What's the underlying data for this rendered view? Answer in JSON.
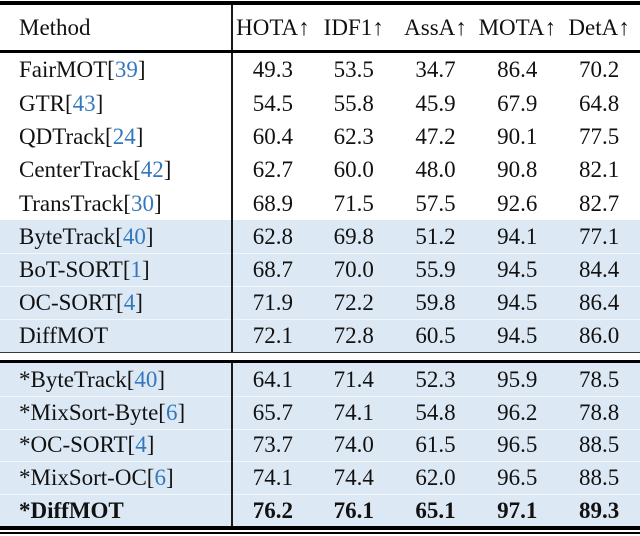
{
  "table_title": "tracking-results-table",
  "colors": {
    "citation_blue": "#3477bd",
    "row_highlight_blue": "#dce8f4",
    "text": "#111111"
  },
  "header": {
    "method": "Method",
    "cols": [
      "HOTA↑",
      "IDF1↑",
      "AssA↑",
      "MOTA↑",
      "DetA↑"
    ]
  },
  "rows": [
    {
      "section": 1,
      "highlight": false,
      "bold": false,
      "pre": "FairMOT[",
      "cite": "39",
      "post": "]",
      "values": [
        "49.3",
        "53.5",
        "34.7",
        "86.4",
        "70.2"
      ]
    },
    {
      "section": 1,
      "highlight": false,
      "bold": false,
      "pre": "GTR[",
      "cite": "43",
      "post": "]",
      "values": [
        "54.5",
        "55.8",
        "45.9",
        "67.9",
        "64.8"
      ]
    },
    {
      "section": 1,
      "highlight": false,
      "bold": false,
      "pre": "QDTrack[",
      "cite": "24",
      "post": "]",
      "values": [
        "60.4",
        "62.3",
        "47.2",
        "90.1",
        "77.5"
      ]
    },
    {
      "section": 1,
      "highlight": false,
      "bold": false,
      "pre": "CenterTrack[",
      "cite": "42",
      "post": "]",
      "values": [
        "62.7",
        "60.0",
        "48.0",
        "90.8",
        "82.1"
      ]
    },
    {
      "section": 1,
      "highlight": false,
      "bold": false,
      "pre": "TransTrack[",
      "cite": "30",
      "post": "]",
      "values": [
        "68.9",
        "71.5",
        "57.5",
        "92.6",
        "82.7"
      ]
    },
    {
      "section": 2,
      "highlight": true,
      "bold": false,
      "pre": "ByteTrack[",
      "cite": "40",
      "post": "]",
      "values": [
        "62.8",
        "69.8",
        "51.2",
        "94.1",
        "77.1"
      ]
    },
    {
      "section": 2,
      "highlight": true,
      "bold": false,
      "pre": "BoT-SORT[",
      "cite": "1",
      "post": "]",
      "values": [
        "68.7",
        "70.0",
        "55.9",
        "94.5",
        "84.4"
      ]
    },
    {
      "section": 2,
      "highlight": true,
      "bold": false,
      "pre": "OC-SORT[",
      "cite": "4",
      "post": "]",
      "values": [
        "71.9",
        "72.2",
        "59.8",
        "94.5",
        "86.4"
      ]
    },
    {
      "section": 2,
      "highlight": true,
      "bold": false,
      "pre": "DiffMOT",
      "cite": "",
      "post": "",
      "values": [
        "72.1",
        "72.8",
        "60.5",
        "94.5",
        "86.0"
      ]
    },
    {
      "section": 3,
      "highlight": true,
      "bold": false,
      "pre": "*ByteTrack[",
      "cite": "40",
      "post": "]",
      "values": [
        "64.1",
        "71.4",
        "52.3",
        "95.9",
        "78.5"
      ]
    },
    {
      "section": 3,
      "highlight": true,
      "bold": false,
      "pre": "*MixSort-Byte[",
      "cite": "6",
      "post": "]",
      "values": [
        "65.7",
        "74.1",
        "54.8",
        "96.2",
        "78.8"
      ]
    },
    {
      "section": 3,
      "highlight": true,
      "bold": false,
      "pre": "*OC-SORT[",
      "cite": "4",
      "post": "]",
      "values": [
        "73.7",
        "74.0",
        "61.5",
        "96.5",
        "88.5"
      ]
    },
    {
      "section": 3,
      "highlight": true,
      "bold": false,
      "pre": "*MixSort-OC[",
      "cite": "6",
      "post": "]",
      "values": [
        "74.1",
        "74.4",
        "62.0",
        "96.5",
        "88.5"
      ]
    },
    {
      "section": 3,
      "highlight": true,
      "bold": true,
      "pre": "*DiffMOT",
      "cite": "",
      "post": "",
      "values": [
        "76.2",
        "76.1",
        "65.1",
        "97.1",
        "89.3"
      ]
    }
  ]
}
